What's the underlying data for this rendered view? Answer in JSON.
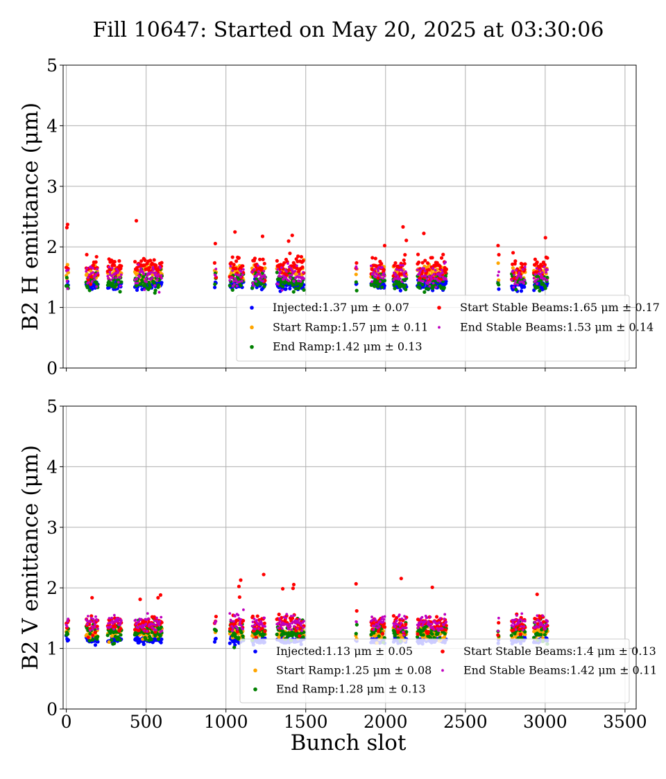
{
  "figure": {
    "title": "Fill 10647: Started on May 20, 2025 at 03:30:06",
    "xlabel": "Bunch slot"
  },
  "colors": {
    "injected": "#0000ff",
    "start_ramp": "#ffa500",
    "end_ramp": "#008000",
    "start_stable": "#ff0000",
    "end_stable": "#bf00bf",
    "grid": "#b0b0b0"
  },
  "chart_data": [
    {
      "type": "scatter",
      "ylabel": "B2 H emittance (μm)",
      "xlim": [
        -20,
        3570
      ],
      "ylim": [
        0,
        5
      ],
      "x_ticks": [
        "0",
        "500",
        "1000",
        "1500",
        "2000",
        "2500",
        "3000",
        "3500"
      ],
      "y_ticks": [
        "0",
        "1",
        "2",
        "3",
        "4",
        "5"
      ],
      "grid": true,
      "legend_position": "lower-right",
      "show_x_tick_labels": false,
      "trains": [
        {
          "start": 0,
          "end": 15
        },
        {
          "start": 125,
          "end": 200
        },
        {
          "start": 260,
          "end": 345
        },
        {
          "start": 430,
          "end": 600
        },
        {
          "start": 930,
          "end": 940
        },
        {
          "start": 1025,
          "end": 1110
        },
        {
          "start": 1165,
          "end": 1245
        },
        {
          "start": 1320,
          "end": 1490
        },
        {
          "start": 1815,
          "end": 1820
        },
        {
          "start": 1910,
          "end": 1995
        },
        {
          "start": 2050,
          "end": 2130
        },
        {
          "start": 2200,
          "end": 2380
        },
        {
          "start": 2705,
          "end": 2710
        },
        {
          "start": 2790,
          "end": 2875
        },
        {
          "start": 2930,
          "end": 3015
        }
      ],
      "series": [
        {
          "key": "injected",
          "label": "Injected:1.37 μm ± 0.07",
          "mean": 1.37,
          "std": 0.07
        },
        {
          "key": "start_ramp",
          "label": "Start Ramp:1.57 μm ± 0.11",
          "mean": 1.57,
          "std": 0.11
        },
        {
          "key": "end_ramp",
          "label": "End Ramp:1.42 μm ± 0.13",
          "mean": 1.42,
          "std": 0.13
        },
        {
          "key": "start_stable",
          "label": "Start Stable Beams:1.65 μm ± 0.17",
          "mean": 1.65,
          "std": 0.17
        },
        {
          "key": "end_stable",
          "label": "End Stable Beams:1.53 μm ± 0.14",
          "mean": 1.53,
          "std": 0.14
        }
      ]
    },
    {
      "type": "scatter",
      "ylabel": "B2 V emittance (μm)",
      "xlim": [
        -20,
        3570
      ],
      "ylim": [
        0,
        5
      ],
      "x_ticks": [
        "0",
        "500",
        "1000",
        "1500",
        "2000",
        "2500",
        "3000",
        "3500"
      ],
      "y_ticks": [
        "0",
        "1",
        "2",
        "3",
        "4",
        "5"
      ],
      "grid": true,
      "legend_position": "lower-right",
      "show_x_tick_labels": true,
      "trains": [
        {
          "start": 0,
          "end": 15
        },
        {
          "start": 125,
          "end": 200
        },
        {
          "start": 260,
          "end": 345
        },
        {
          "start": 430,
          "end": 600
        },
        {
          "start": 930,
          "end": 940
        },
        {
          "start": 1025,
          "end": 1110
        },
        {
          "start": 1165,
          "end": 1245
        },
        {
          "start": 1320,
          "end": 1490
        },
        {
          "start": 1815,
          "end": 1820
        },
        {
          "start": 1910,
          "end": 1995
        },
        {
          "start": 2050,
          "end": 2130
        },
        {
          "start": 2200,
          "end": 2380
        },
        {
          "start": 2705,
          "end": 2710
        },
        {
          "start": 2790,
          "end": 2875
        },
        {
          "start": 2930,
          "end": 3015
        }
      ],
      "series": [
        {
          "key": "injected",
          "label": "Injected:1.13 μm ± 0.05",
          "mean": 1.13,
          "std": 0.05
        },
        {
          "key": "start_ramp",
          "label": "Start Ramp:1.25 μm ± 0.08",
          "mean": 1.25,
          "std": 0.08
        },
        {
          "key": "end_ramp",
          "label": "End Ramp:1.28 μm ± 0.13",
          "mean": 1.28,
          "std": 0.13
        },
        {
          "key": "start_stable",
          "label": "Start Stable Beams:1.4 μm ± 0.13",
          "mean": 1.4,
          "std": 0.13
        },
        {
          "key": "end_stable",
          "label": "End Stable Beams:1.42 μm ± 0.11",
          "mean": 1.42,
          "std": 0.11
        }
      ]
    }
  ]
}
